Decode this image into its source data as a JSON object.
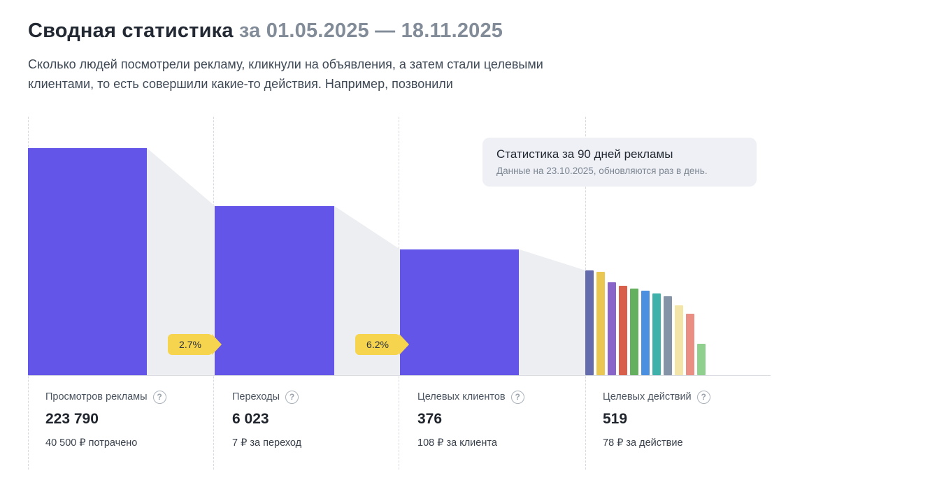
{
  "header": {
    "title": "Сводная статистика",
    "period": "за 01.05.2025 — 18.11.2025",
    "description": "Сколько людей посмотрели рекламу, кликнули на объявления, а затем стали целевыми клиентами, то есть совершили какие-то действия. Например, позвонили"
  },
  "tooltip": {
    "title": "Статистика за 90 дней рекламы",
    "subtitle": "Данные на 23.10.2025, обновляются раз в день."
  },
  "chart_data": {
    "type": "bar",
    "subtype": "funnel",
    "title": "Сводная статистика за 01.05.2025 — 18.11.2025",
    "bar_color": "#6355e8",
    "joint_color": "#edeef2",
    "tag_color": "#f6d44e",
    "stages": [
      {
        "label": "Просмотров рекламы",
        "value": "223 790",
        "value_numeric": 223790,
        "detail": "40 500 ₽ потрачено",
        "help_glyph": "?"
      },
      {
        "label": "Переходы",
        "value": "6 023",
        "value_numeric": 6023,
        "detail": "7 ₽ за переход",
        "conversion_from_prev": "2.7%",
        "help_glyph": "?"
      },
      {
        "label": "Целевых клиентов",
        "value": "376",
        "value_numeric": 376,
        "detail": "108 ₽ за клиента",
        "conversion_from_prev": "6.2%",
        "help_glyph": "?"
      },
      {
        "label": "Целевых действий",
        "value": "519",
        "value_numeric": 519,
        "detail": "78 ₽ за действие",
        "help_glyph": "?"
      }
    ],
    "actions_mini_bars": [
      {
        "color": "#646cad",
        "height": 150
      },
      {
        "color": "#e9c751",
        "height": 148
      },
      {
        "color": "#8a65c9",
        "height": 133
      },
      {
        "color": "#d8604a",
        "height": 128
      },
      {
        "color": "#63b15e",
        "height": 124
      },
      {
        "color": "#4a8fe0",
        "height": 121
      },
      {
        "color": "#3eb2aa",
        "height": 117
      },
      {
        "color": "#8494a6",
        "height": 113
      },
      {
        "color": "#f3e5a8",
        "height": 100
      },
      {
        "color": "#ea8d82",
        "height": 88
      },
      {
        "color": "#90d08f",
        "height": 45
      }
    ],
    "legend": "none",
    "axis": "none"
  }
}
